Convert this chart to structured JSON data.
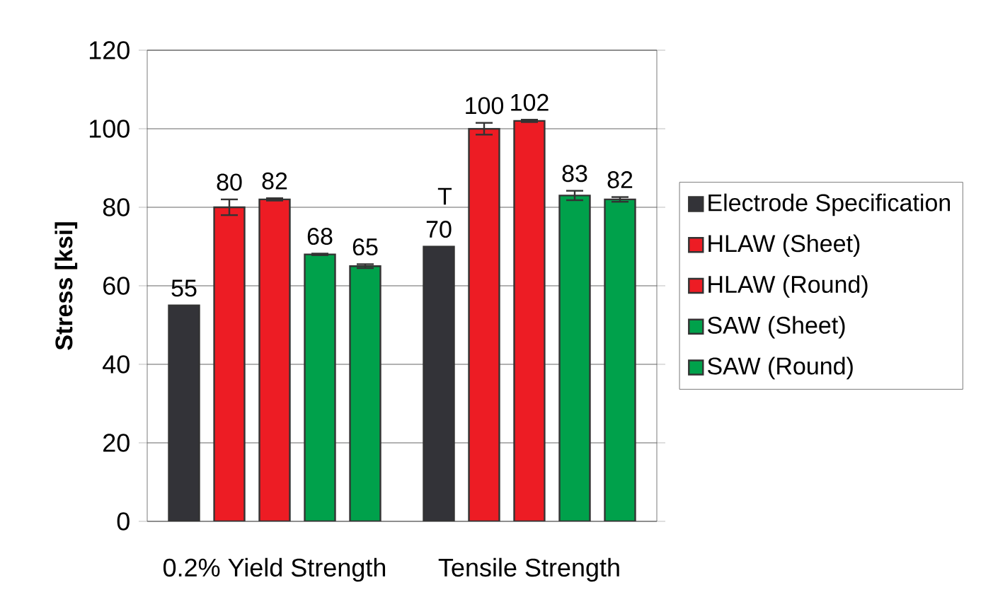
{
  "chart_data": {
    "type": "bar",
    "ylabel": "Stress [ksi]",
    "categories": [
      "0.2% Yield Strength",
      "Tensile Strength"
    ],
    "series": [
      {
        "name": "Electrode Specification",
        "color": "#333338",
        "values": [
          55,
          70
        ],
        "errors": [
          null,
          null
        ]
      },
      {
        "name": "HLAW (Sheet)",
        "color": "#ed1c24",
        "values": [
          80,
          100
        ],
        "errors": [
          2,
          1.5
        ]
      },
      {
        "name": "HLAW (Round)",
        "color": "#ed1c24",
        "values": [
          82,
          102
        ],
        "errors": [
          0.3,
          0.3
        ]
      },
      {
        "name": "SAW (Sheet)",
        "color": "#00a14b",
        "values": [
          68,
          83
        ],
        "errors": [
          0.2,
          1.2
        ]
      },
      {
        "name": "SAW (Round)",
        "color": "#00a14b",
        "values": [
          65,
          82
        ],
        "errors": [
          0.5,
          0.6
        ]
      }
    ],
    "ylim": [
      0,
      120
    ],
    "yticks": [
      0,
      20,
      40,
      60,
      80,
      100,
      120
    ],
    "grid": "y",
    "legend": "right",
    "data_labels": true,
    "annotations": [
      "T"
    ]
  }
}
